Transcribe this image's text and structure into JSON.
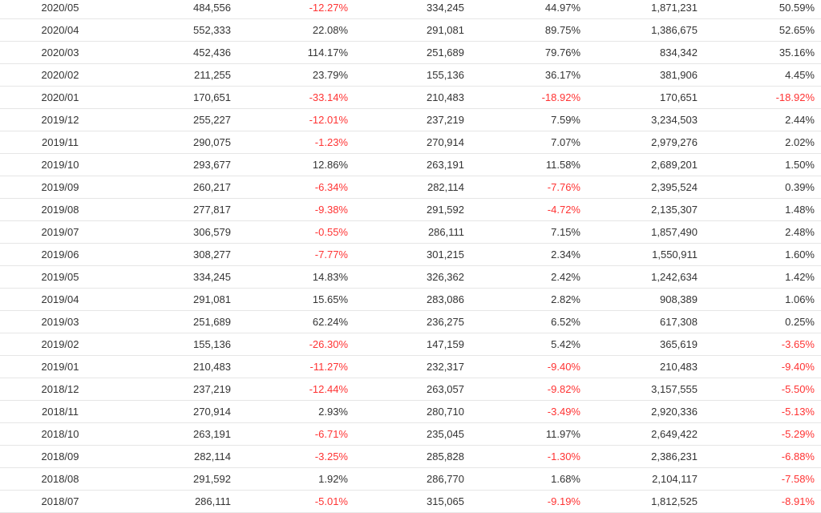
{
  "colors": {
    "text": "#333333",
    "negative": "#ff3333",
    "divider": "#e6e6e6"
  },
  "rows": [
    [
      "2020/05",
      "484,556",
      "-12.27%",
      "334,245",
      "44.97%",
      "1,871,231",
      "50.59%"
    ],
    [
      "2020/04",
      "552,333",
      "22.08%",
      "291,081",
      "89.75%",
      "1,386,675",
      "52.65%"
    ],
    [
      "2020/03",
      "452,436",
      "114.17%",
      "251,689",
      "79.76%",
      "834,342",
      "35.16%"
    ],
    [
      "2020/02",
      "211,255",
      "23.79%",
      "155,136",
      "36.17%",
      "381,906",
      "4.45%"
    ],
    [
      "2020/01",
      "170,651",
      "-33.14%",
      "210,483",
      "-18.92%",
      "170,651",
      "-18.92%"
    ],
    [
      "2019/12",
      "255,227",
      "-12.01%",
      "237,219",
      "7.59%",
      "3,234,503",
      "2.44%"
    ],
    [
      "2019/11",
      "290,075",
      "-1.23%",
      "270,914",
      "7.07%",
      "2,979,276",
      "2.02%"
    ],
    [
      "2019/10",
      "293,677",
      "12.86%",
      "263,191",
      "11.58%",
      "2,689,201",
      "1.50%"
    ],
    [
      "2019/09",
      "260,217",
      "-6.34%",
      "282,114",
      "-7.76%",
      "2,395,524",
      "0.39%"
    ],
    [
      "2019/08",
      "277,817",
      "-9.38%",
      "291,592",
      "-4.72%",
      "2,135,307",
      "1.48%"
    ],
    [
      "2019/07",
      "306,579",
      "-0.55%",
      "286,111",
      "7.15%",
      "1,857,490",
      "2.48%"
    ],
    [
      "2019/06",
      "308,277",
      "-7.77%",
      "301,215",
      "2.34%",
      "1,550,911",
      "1.60%"
    ],
    [
      "2019/05",
      "334,245",
      "14.83%",
      "326,362",
      "2.42%",
      "1,242,634",
      "1.42%"
    ],
    [
      "2019/04",
      "291,081",
      "15.65%",
      "283,086",
      "2.82%",
      "908,389",
      "1.06%"
    ],
    [
      "2019/03",
      "251,689",
      "62.24%",
      "236,275",
      "6.52%",
      "617,308",
      "0.25%"
    ],
    [
      "2019/02",
      "155,136",
      "-26.30%",
      "147,159",
      "5.42%",
      "365,619",
      "-3.65%"
    ],
    [
      "2019/01",
      "210,483",
      "-11.27%",
      "232,317",
      "-9.40%",
      "210,483",
      "-9.40%"
    ],
    [
      "2018/12",
      "237,219",
      "-12.44%",
      "263,057",
      "-9.82%",
      "3,157,555",
      "-5.50%"
    ],
    [
      "2018/11",
      "270,914",
      "2.93%",
      "280,710",
      "-3.49%",
      "2,920,336",
      "-5.13%"
    ],
    [
      "2018/10",
      "263,191",
      "-6.71%",
      "235,045",
      "11.97%",
      "2,649,422",
      "-5.29%"
    ],
    [
      "2018/09",
      "282,114",
      "-3.25%",
      "285,828",
      "-1.30%",
      "2,386,231",
      "-6.88%"
    ],
    [
      "2018/08",
      "291,592",
      "1.92%",
      "286,770",
      "1.68%",
      "2,104,117",
      "-7.58%"
    ],
    [
      "2018/07",
      "286,111",
      "-5.01%",
      "315,065",
      "-9.19%",
      "1,812,525",
      "-8.91%"
    ]
  ]
}
